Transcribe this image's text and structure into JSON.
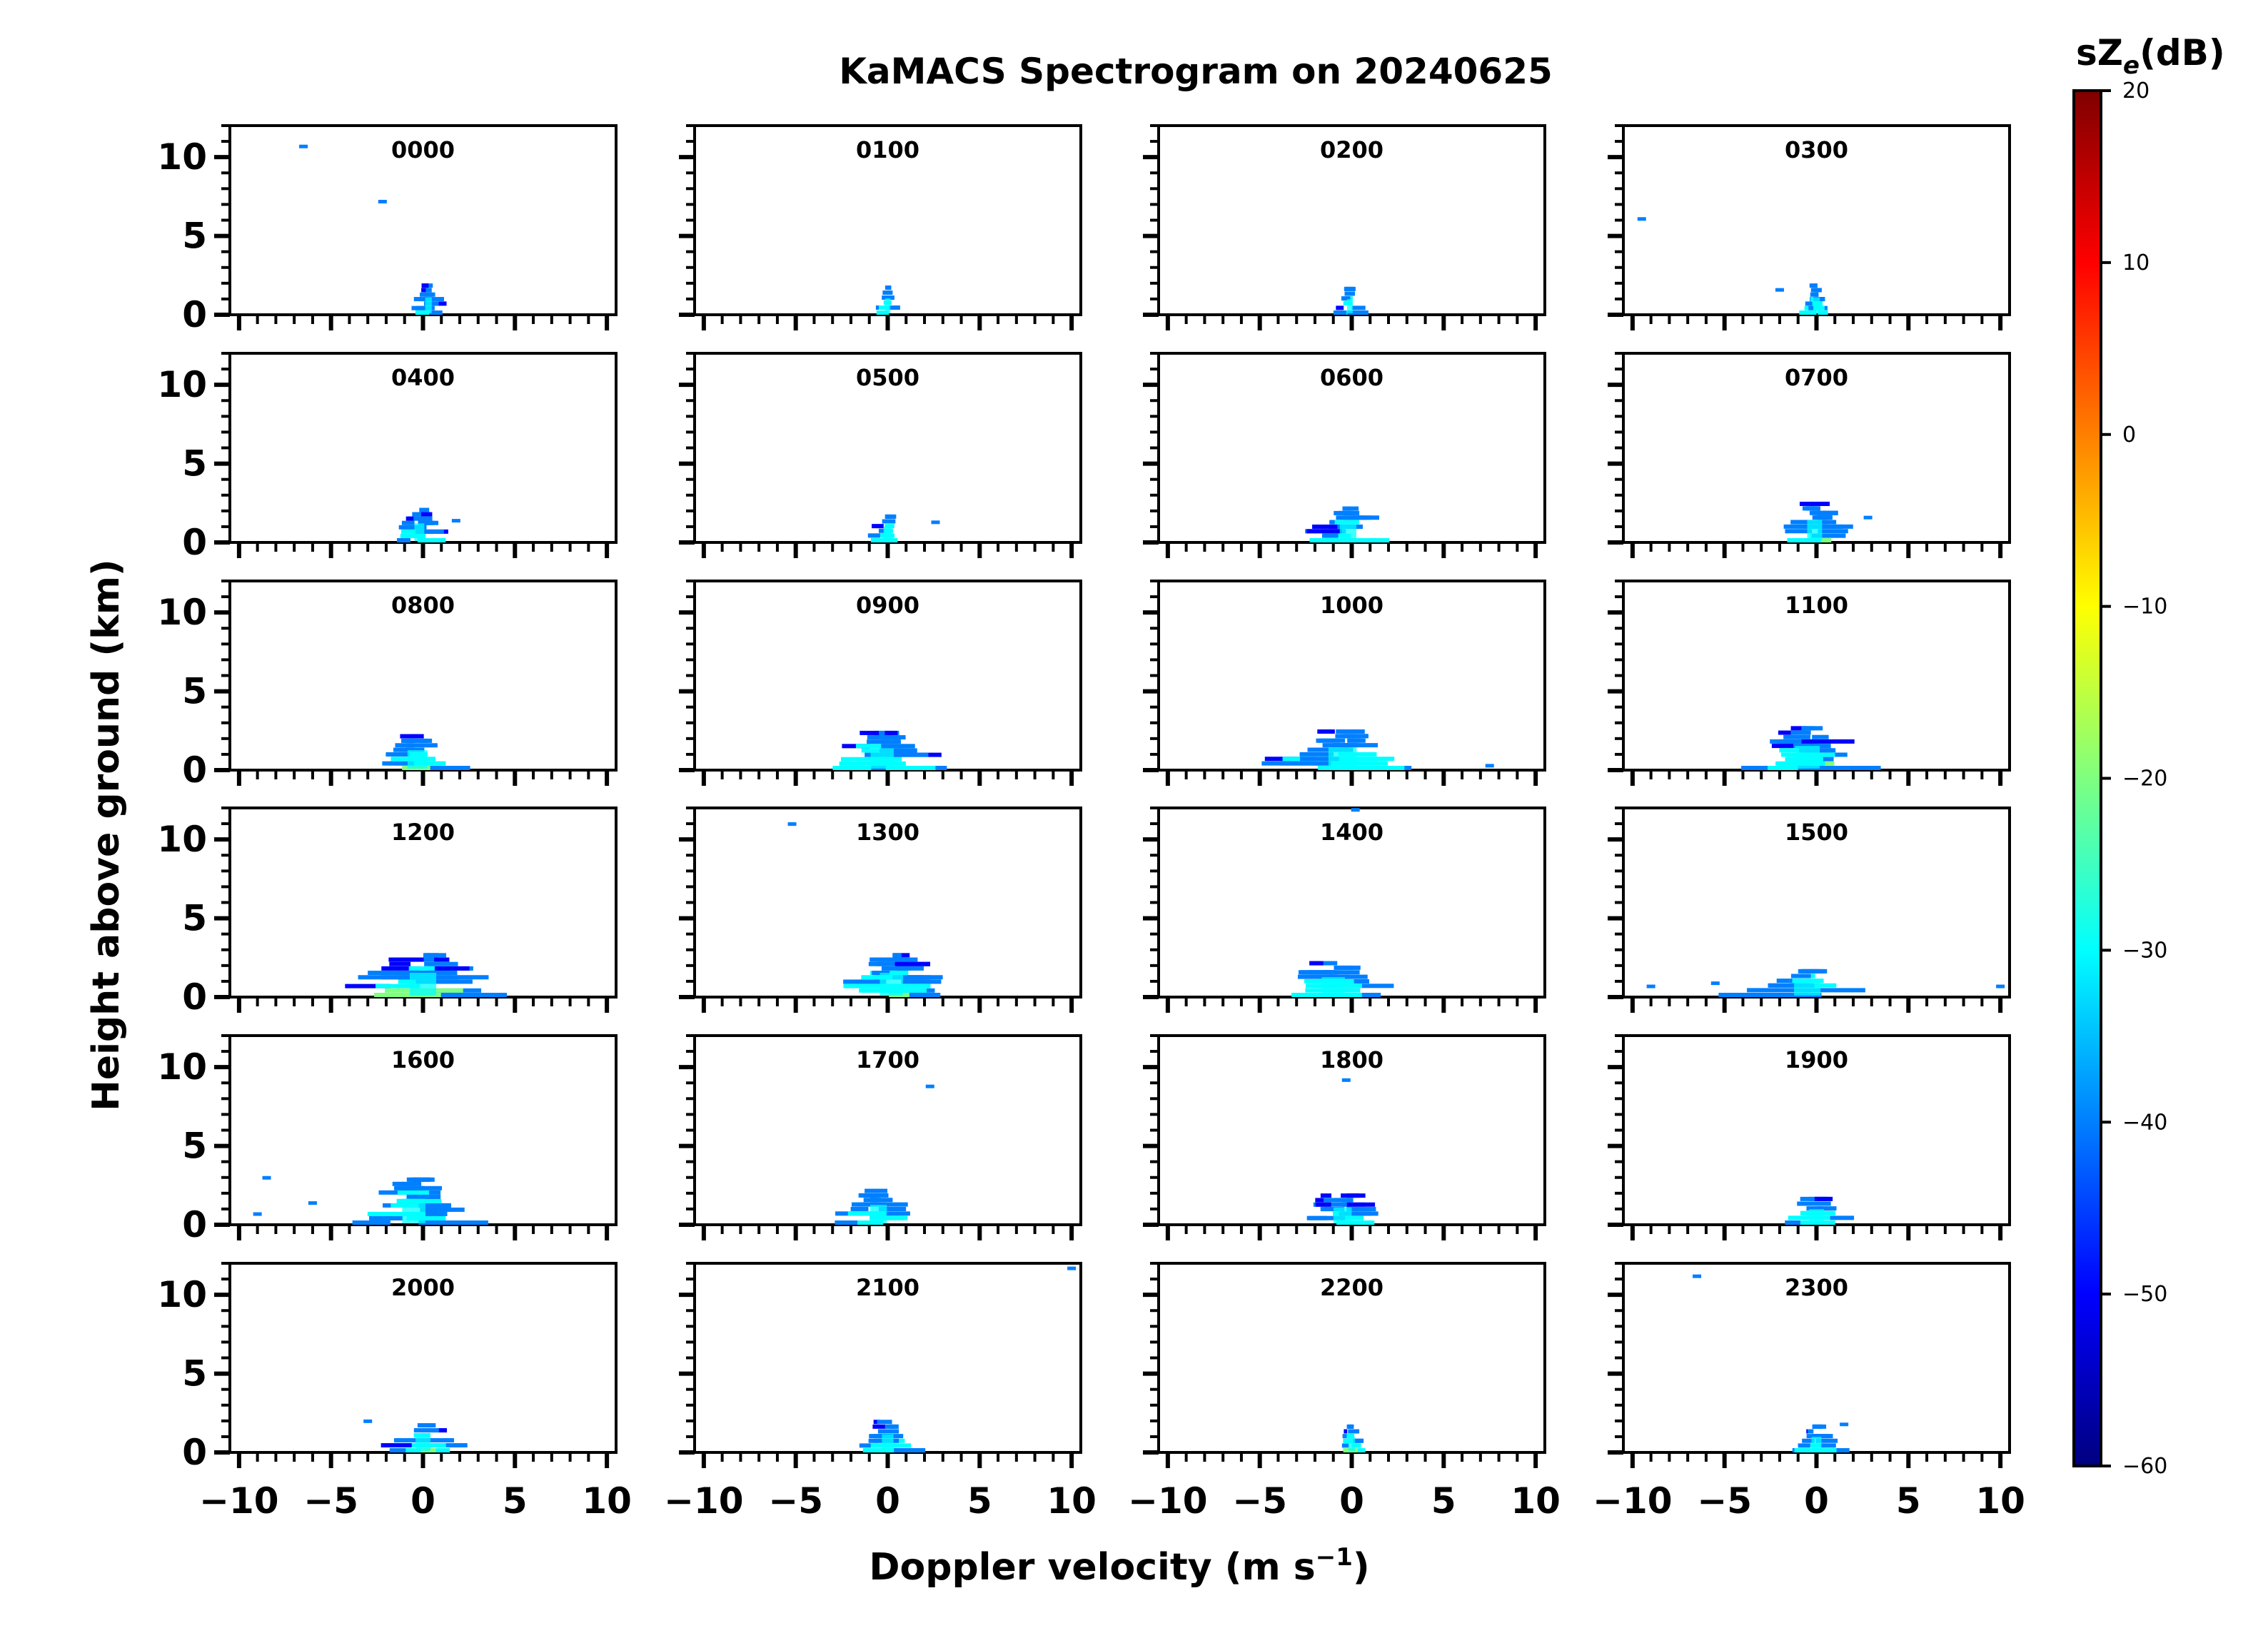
{
  "chart_data": {
    "type": "heatmap",
    "title": "KaMACS Spectrogram on 20240625",
    "xlabel": "Doppler velocity (m s",
    "xlabel_superscript": "−1",
    "xlabel_close": ")",
    "ylabel": "Height above ground (km)",
    "xlim": [
      -10.5,
      10.5
    ],
    "ylim": [
      0,
      12
    ],
    "xticks_major": [
      -10,
      -5,
      0,
      5,
      10
    ],
    "xtick_labels": [
      "−10",
      "−5",
      "0",
      "5",
      "10"
    ],
    "yticks_major": [
      0,
      5,
      10
    ],
    "ytick_labels": [
      "0",
      "5",
      "10"
    ],
    "panels": [
      {
        "label": "0000",
        "top": 2.0,
        "width": 2.0,
        "center": 0.3,
        "sparse": [
          [
            -6.5,
            10.7
          ],
          [
            -2.2,
            7.2
          ]
        ]
      },
      {
        "label": "0100",
        "top": 1.9,
        "width": 1.6,
        "center": 0.0,
        "sparse": []
      },
      {
        "label": "0200",
        "top": 1.8,
        "width": 1.7,
        "center": -0.1,
        "sparse": []
      },
      {
        "label": "0300",
        "top": 2.0,
        "width": 2.0,
        "center": 0.0,
        "sparse": [
          [
            -9.5,
            6.1
          ],
          [
            -2.0,
            1.6
          ]
        ]
      },
      {
        "label": "0400",
        "top": 2.2,
        "width": 3.0,
        "center": -0.2,
        "sparse": [
          [
            1.8,
            1.4
          ]
        ]
      },
      {
        "label": "0500",
        "top": 1.8,
        "width": 2.5,
        "center": 0.0,
        "sparse": [
          [
            2.6,
            1.3
          ]
        ]
      },
      {
        "label": "0600",
        "top": 2.3,
        "width": 5.0,
        "center": -0.2,
        "sparse": []
      },
      {
        "label": "0700",
        "top": 2.6,
        "width": 4.5,
        "center": -0.1,
        "sparse": [
          [
            2.8,
            1.6
          ]
        ]
      },
      {
        "label": "0800",
        "top": 2.3,
        "width": 6.0,
        "center": -0.3,
        "sparse": []
      },
      {
        "label": "0900",
        "top": 2.5,
        "width": 7.0,
        "center": -0.3,
        "sparse": []
      },
      {
        "label": "1000",
        "top": 2.6,
        "width": 8.5,
        "center": -0.5,
        "sparse": [
          [
            7.5,
            0.3
          ]
        ]
      },
      {
        "label": "1100",
        "top": 2.8,
        "width": 7.5,
        "center": -0.5,
        "sparse": []
      },
      {
        "label": "1200",
        "top": 2.8,
        "width": 8.0,
        "center": 0.0,
        "sparse": []
      },
      {
        "label": "1300",
        "top": 2.8,
        "width": 7.0,
        "center": 0.2,
        "sparse": [
          [
            -5.2,
            11.0
          ]
        ]
      },
      {
        "label": "1400",
        "top": 2.3,
        "width": 7.0,
        "center": -1.0,
        "sparse": [
          [
            0.2,
            11.9
          ]
        ]
      },
      {
        "label": "1500",
        "top": 1.8,
        "width": 8.0,
        "center": -0.5,
        "sparse": [
          [
            -9.0,
            0.7
          ],
          [
            -5.5,
            0.9
          ],
          [
            10.0,
            0.7
          ]
        ]
      },
      {
        "label": "1600",
        "top": 3.0,
        "width": 7.0,
        "center": -0.5,
        "sparse": [
          [
            -8.5,
            3.0
          ],
          [
            -9.0,
            0.7
          ],
          [
            -6.0,
            1.4
          ]
        ]
      },
      {
        "label": "1700",
        "top": 2.3,
        "width": 5.0,
        "center": -0.5,
        "sparse": [
          [
            2.3,
            8.8
          ]
        ]
      },
      {
        "label": "1800",
        "top": 2.0,
        "width": 5.5,
        "center": -0.5,
        "sparse": [
          [
            -0.3,
            9.2
          ]
        ]
      },
      {
        "label": "1900",
        "top": 1.8,
        "width": 4.5,
        "center": 0.0,
        "sparse": []
      },
      {
        "label": "2000",
        "top": 1.9,
        "width": 4.5,
        "center": 0.0,
        "sparse": [
          [
            -3.0,
            2.0
          ]
        ]
      },
      {
        "label": "2100",
        "top": 2.1,
        "width": 3.5,
        "center": 0.0,
        "sparse": [
          [
            10.0,
            11.7
          ]
        ]
      },
      {
        "label": "2200",
        "top": 1.8,
        "width": 2.0,
        "center": 0.0,
        "sparse": []
      },
      {
        "label": "2300",
        "top": 1.8,
        "width": 3.0,
        "center": 0.0,
        "sparse": [
          [
            -6.5,
            11.2
          ],
          [
            1.5,
            1.8
          ]
        ]
      }
    ],
    "colorbar": {
      "title": "sZ",
      "title_subscript": "e",
      "title_unit": "(dB)",
      "range": [
        -60,
        20
      ],
      "ticks": [
        20,
        10,
        0,
        -10,
        -20,
        -30,
        -40,
        -50,
        -60
      ],
      "tick_labels": [
        "20",
        "10",
        "0",
        "−10",
        "−20",
        "−30",
        "−40",
        "−50",
        "−60"
      ],
      "colormap": "jet",
      "colors": [
        "#00007f",
        "#0000ff",
        "#007fff",
        "#00ffff",
        "#7fff7f",
        "#ffff00",
        "#ff7f00",
        "#ff0000",
        "#7f0000"
      ]
    }
  }
}
